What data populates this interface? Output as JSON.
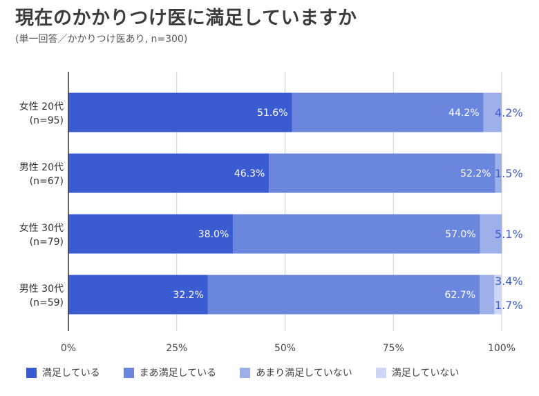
{
  "title": "現在のかかりつけ医に満足していますか",
  "subtitle": "(単一回答／かかりつけ医あり, n=300)",
  "chart_data": {
    "type": "bar",
    "orientation": "horizontal",
    "stacked": true,
    "categories": [
      {
        "name": "女性 20代",
        "n": "(n=95)"
      },
      {
        "name": "男性 20代",
        "n": "(n=67)"
      },
      {
        "name": "女性 30代",
        "n": "(n=79)"
      },
      {
        "name": "男性 30代",
        "n": "(n=59)"
      }
    ],
    "series": [
      {
        "name": "満足している",
        "color": "#3b5bd0",
        "values": [
          51.6,
          46.3,
          38.0,
          32.2
        ],
        "labels": [
          "51.6%",
          "46.3%",
          "38.0%",
          "32.2%"
        ]
      },
      {
        "name": "まあ満足している",
        "color": "#6b86dd",
        "values": [
          44.2,
          52.2,
          57.0,
          62.7
        ],
        "labels": [
          "44.2%",
          "52.2%",
          "57.0%",
          "62.7%"
        ]
      },
      {
        "name": "あまり満足していない",
        "color": "#9dafe8",
        "values": [
          4.2,
          1.5,
          5.1,
          3.4
        ],
        "labels": [
          "4.2%",
          "1.5%",
          "5.1%",
          "3.4%"
        ]
      },
      {
        "name": "満足していない",
        "color": "#cdd6f4",
        "values": [
          0,
          0,
          0,
          1.7
        ],
        "labels": [
          "",
          "",
          "",
          "1.7%"
        ]
      }
    ],
    "xlim": [
      0,
      100
    ],
    "xticks": [
      "0%",
      "25%",
      "50%",
      "75%",
      "100%"
    ],
    "grid": true,
    "legend_position": "bottom"
  }
}
